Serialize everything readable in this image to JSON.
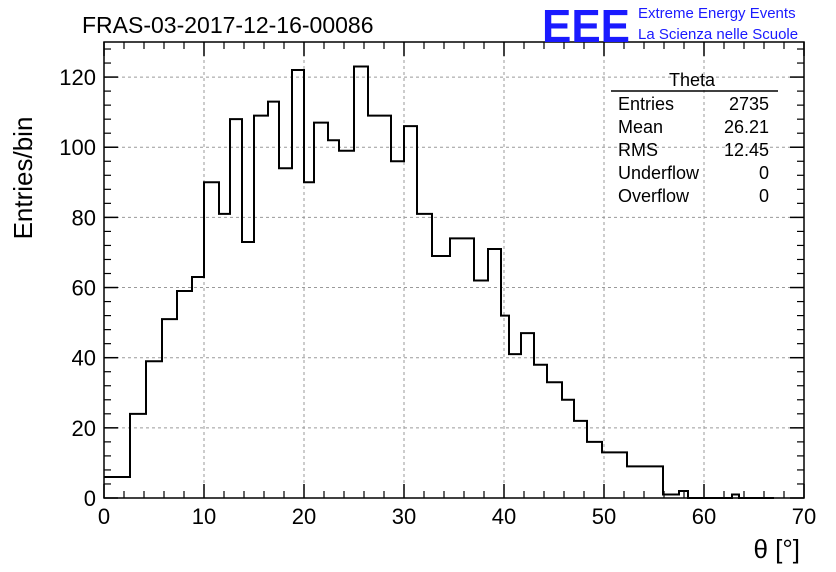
{
  "title": "FRAS-03-2017-12-16-00086",
  "logo": {
    "mark": "EEE",
    "line1": "Extreme Energy Events",
    "line2": "La Scienza nelle Scuole",
    "color": "#1a1aff"
  },
  "stats": {
    "name": "Theta",
    "rows": [
      {
        "label": "Entries",
        "value": "2735"
      },
      {
        "label": "Mean",
        "value": "26.21"
      },
      {
        "label": "RMS",
        "value": "12.45"
      },
      {
        "label": "Underflow",
        "value": "0"
      },
      {
        "label": "Overflow",
        "value": "0"
      }
    ]
  },
  "chart_data": {
    "type": "bar",
    "subtype": "step-histogram",
    "xlabel": "θ [°]",
    "ylabel": "Entries/bin",
    "xlim": [
      0,
      70
    ],
    "ylim": [
      0,
      130
    ],
    "x_ticks": [
      0,
      10,
      20,
      30,
      40,
      50,
      60,
      70
    ],
    "y_ticks": [
      0,
      20,
      40,
      60,
      80,
      100,
      120
    ],
    "grid": true,
    "legend": "top-right stats box",
    "bin_edges": [
      0,
      2.6,
      4.2,
      5.8,
      7.3,
      8.8,
      10.0,
      11.5,
      12.6,
      13.8,
      15.0,
      16.4,
      17.5,
      18.8,
      20.0,
      21.0,
      22.4,
      23.5,
      25.0,
      26.4,
      27.5,
      28.7,
      30.0,
      31.3,
      32.8,
      34.6,
      35.8,
      37.0,
      38.4,
      39.7,
      40.5,
      41.7,
      43.0,
      44.3,
      45.8,
      47.0,
      48.3,
      49.8,
      51.1,
      52.3,
      53.9,
      55.9,
      57.5,
      58.4,
      59.8,
      61.0,
      62.8,
      63.5,
      64.2,
      67.0
    ],
    "values": [
      6,
      24,
      39,
      51,
      59,
      63,
      90,
      81,
      108,
      73,
      109,
      113,
      94,
      122,
      90,
      107,
      102,
      99,
      123,
      109,
      109,
      96,
      106,
      81,
      69,
      74,
      74,
      62,
      71,
      52,
      41,
      47,
      38,
      33,
      28,
      22,
      16,
      13,
      13,
      9,
      9,
      1,
      2,
      0,
      0,
      0,
      1,
      0,
      0
    ]
  }
}
